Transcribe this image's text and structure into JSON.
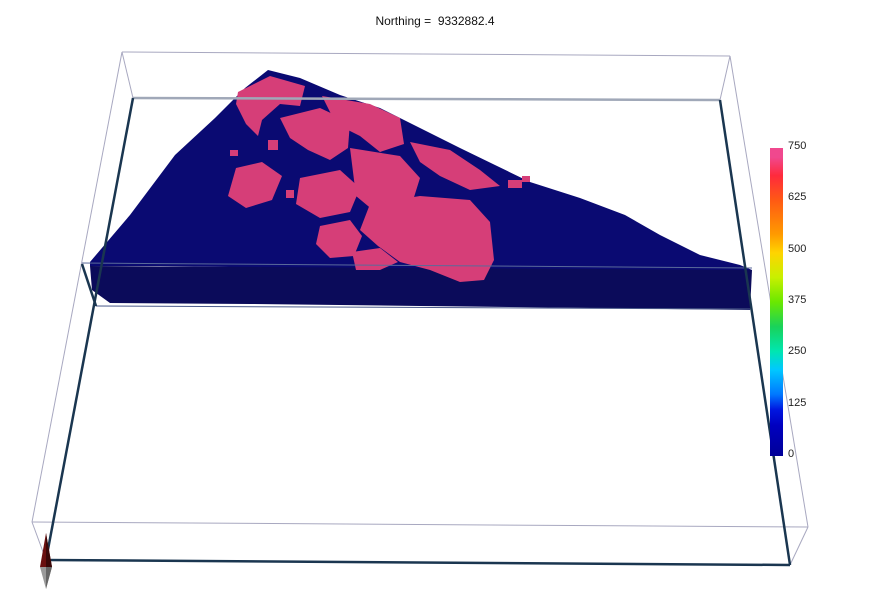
{
  "title": {
    "label": "Northing = ",
    "value": "9332882.4"
  },
  "legend": {
    "ticks": [
      "750",
      "625",
      "500",
      "375",
      "250",
      "125",
      "0"
    ],
    "max": 750,
    "min": 0
  },
  "colors": {
    "background": "#ffffff",
    "low_value": "#0a0a6e",
    "high_value": "#d63e78",
    "box_edge": "#1a3650",
    "box_edge_thin": "#a0a0b8"
  },
  "icons": {
    "axis_marker": "north-arrow-icon"
  }
}
